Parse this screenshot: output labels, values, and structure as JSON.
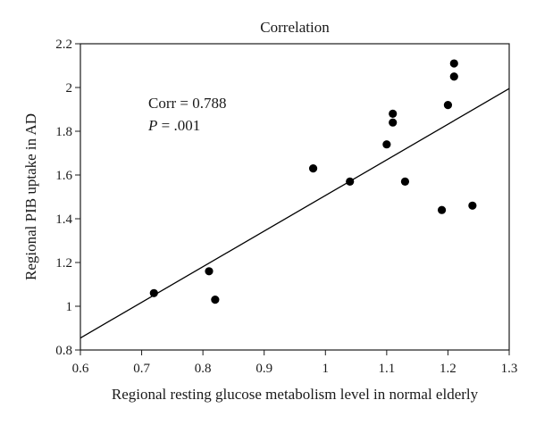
{
  "chart_data": {
    "type": "scatter",
    "title": "Correlation",
    "xlabel": "Regional resting glucose metabolism level in normal elderly",
    "ylabel": "Regional PIB uptake in AD",
    "xlim": [
      0.6,
      1.3
    ],
    "ylim": [
      0.8,
      2.2
    ],
    "x_ticks": [
      "0.6",
      "0.7",
      "0.8",
      "0.9",
      "1",
      "1.1",
      "1.2",
      "1.3"
    ],
    "y_ticks": [
      "0.8",
      "1",
      "1.2",
      "1.4",
      "1.6",
      "1.8",
      "2",
      "2.2"
    ],
    "grid": false,
    "points": [
      {
        "x": 0.72,
        "y": 1.06
      },
      {
        "x": 0.81,
        "y": 1.16
      },
      {
        "x": 0.82,
        "y": 1.03
      },
      {
        "x": 0.98,
        "y": 1.63
      },
      {
        "x": 1.04,
        "y": 1.57
      },
      {
        "x": 1.1,
        "y": 1.74
      },
      {
        "x": 1.11,
        "y": 1.84
      },
      {
        "x": 1.11,
        "y": 1.88
      },
      {
        "x": 1.13,
        "y": 1.57
      },
      {
        "x": 1.19,
        "y": 1.44
      },
      {
        "x": 1.2,
        "y": 1.92
      },
      {
        "x": 1.21,
        "y": 2.05
      },
      {
        "x": 1.21,
        "y": 2.11
      },
      {
        "x": 1.24,
        "y": 1.46
      }
    ],
    "regression_line": {
      "x": [
        0.6,
        1.3
      ],
      "y": [
        0.855,
        1.995
      ]
    },
    "annotation": {
      "corr": "Corr = 0.788",
      "p_italic": "P",
      "p_rest": " = .001"
    },
    "colors": {
      "marker": "#000000",
      "line": "#000000",
      "axis": "#1a1a1a"
    }
  }
}
